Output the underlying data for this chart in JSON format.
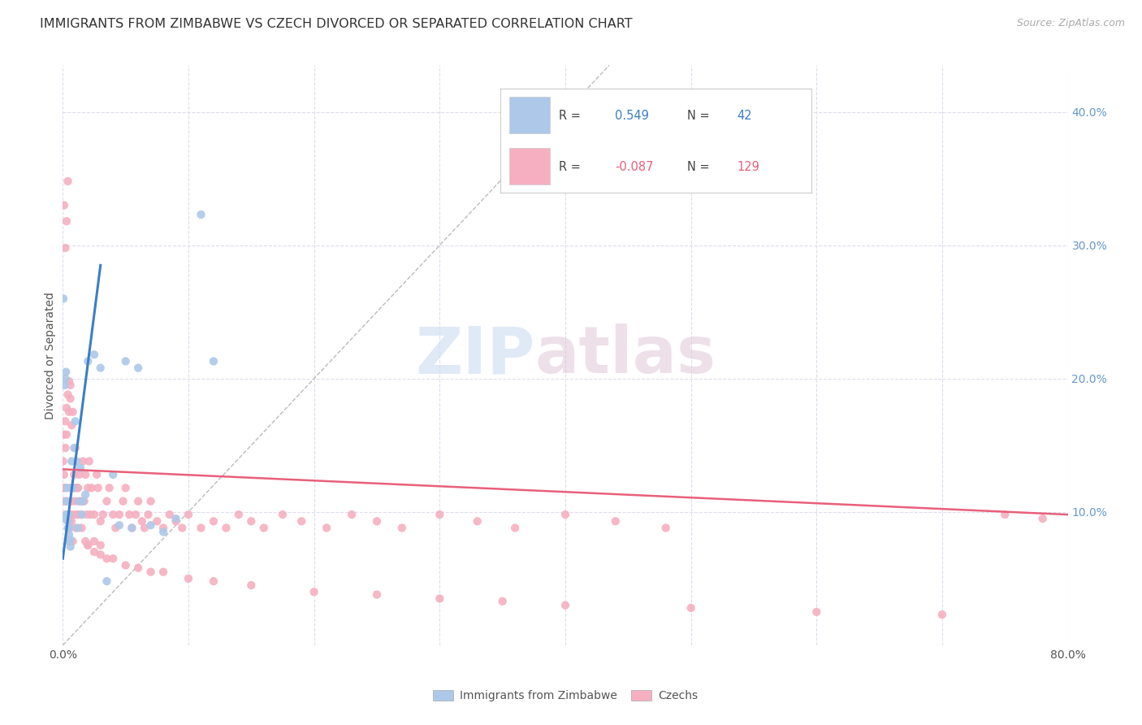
{
  "title": "IMMIGRANTS FROM ZIMBABWE VS CZECH DIVORCED OR SEPARATED CORRELATION CHART",
  "source": "Source: ZipAtlas.com",
  "ylabel": "Divorced or Separated",
  "legend_label_blue": "Immigrants from Zimbabwe",
  "legend_label_pink": "Czechs",
  "watermark_zip": "ZIP",
  "watermark_atlas": "atlas",
  "blue_color": "#adc8e8",
  "pink_color": "#f5afc0",
  "blue_line_color": "#3a7ec8",
  "pink_line_color": "#e8607a",
  "blue_scatter_x": [
    0.0005,
    0.001,
    0.0015,
    0.002,
    0.0025,
    0.003,
    0.003,
    0.0035,
    0.004,
    0.004,
    0.0045,
    0.005,
    0.005,
    0.005,
    0.006,
    0.006,
    0.007,
    0.007,
    0.008,
    0.009,
    0.01,
    0.011,
    0.012,
    0.013,
    0.014,
    0.015,
    0.016,
    0.018,
    0.02,
    0.025,
    0.03,
    0.035,
    0.04,
    0.045,
    0.05,
    0.055,
    0.06,
    0.07,
    0.08,
    0.09,
    0.11,
    0.12
  ],
  "blue_scatter_y": [
    0.26,
    0.095,
    0.195,
    0.2,
    0.205,
    0.098,
    0.108,
    0.118,
    0.088,
    0.093,
    0.098,
    0.078,
    0.083,
    0.088,
    0.074,
    0.079,
    0.118,
    0.138,
    0.118,
    0.148,
    0.168,
    0.138,
    0.088,
    0.108,
    0.133,
    0.098,
    0.108,
    0.113,
    0.213,
    0.218,
    0.208,
    0.048,
    0.128,
    0.09,
    0.213,
    0.088,
    0.208,
    0.09,
    0.085,
    0.095,
    0.323,
    0.213
  ],
  "pink_scatter_x": [
    0.0002,
    0.0005,
    0.001,
    0.001,
    0.0015,
    0.002,
    0.002,
    0.0025,
    0.003,
    0.003,
    0.003,
    0.004,
    0.004,
    0.005,
    0.005,
    0.006,
    0.006,
    0.007,
    0.007,
    0.008,
    0.009,
    0.01,
    0.01,
    0.011,
    0.012,
    0.013,
    0.014,
    0.015,
    0.016,
    0.017,
    0.018,
    0.019,
    0.02,
    0.021,
    0.022,
    0.023,
    0.025,
    0.027,
    0.028,
    0.03,
    0.032,
    0.035,
    0.037,
    0.04,
    0.042,
    0.045,
    0.048,
    0.05,
    0.053,
    0.055,
    0.058,
    0.06,
    0.063,
    0.065,
    0.068,
    0.07,
    0.075,
    0.08,
    0.085,
    0.09,
    0.095,
    0.1,
    0.11,
    0.12,
    0.13,
    0.14,
    0.15,
    0.16,
    0.175,
    0.19,
    0.21,
    0.23,
    0.25,
    0.27,
    0.3,
    0.33,
    0.36,
    0.4,
    0.44,
    0.48,
    0.001,
    0.002,
    0.003,
    0.004,
    0.005,
    0.006,
    0.008,
    0.01,
    0.012,
    0.015,
    0.02,
    0.025,
    0.03,
    0.001,
    0.002,
    0.003,
    0.004,
    0.005,
    0.006,
    0.007,
    0.008,
    0.009,
    0.01,
    0.012,
    0.015,
    0.018,
    0.02,
    0.025,
    0.03,
    0.035,
    0.04,
    0.05,
    0.06,
    0.07,
    0.08,
    0.1,
    0.12,
    0.15,
    0.2,
    0.25,
    0.3,
    0.35,
    0.4,
    0.5,
    0.6,
    0.7,
    0.75,
    0.78
  ],
  "pink_scatter_y": [
    0.138,
    0.118,
    0.118,
    0.128,
    0.108,
    0.118,
    0.148,
    0.098,
    0.098,
    0.108,
    0.158,
    0.093,
    0.098,
    0.088,
    0.093,
    0.098,
    0.118,
    0.093,
    0.108,
    0.098,
    0.128,
    0.118,
    0.148,
    0.098,
    0.118,
    0.128,
    0.108,
    0.098,
    0.138,
    0.108,
    0.128,
    0.098,
    0.118,
    0.138,
    0.098,
    0.118,
    0.098,
    0.128,
    0.118,
    0.093,
    0.098,
    0.108,
    0.118,
    0.098,
    0.088,
    0.098,
    0.108,
    0.118,
    0.098,
    0.088,
    0.098,
    0.108,
    0.093,
    0.088,
    0.098,
    0.108,
    0.093,
    0.088,
    0.098,
    0.093,
    0.088,
    0.098,
    0.088,
    0.093,
    0.088,
    0.098,
    0.093,
    0.088,
    0.098,
    0.093,
    0.088,
    0.098,
    0.093,
    0.088,
    0.098,
    0.093,
    0.088,
    0.098,
    0.093,
    0.088,
    0.33,
    0.298,
    0.318,
    0.348,
    0.198,
    0.195,
    0.078,
    0.088,
    0.118,
    0.108,
    0.075,
    0.078,
    0.075,
    0.158,
    0.168,
    0.178,
    0.188,
    0.175,
    0.185,
    0.165,
    0.175,
    0.118,
    0.108,
    0.098,
    0.088,
    0.078,
    0.075,
    0.07,
    0.068,
    0.065,
    0.065,
    0.06,
    0.058,
    0.055,
    0.055,
    0.05,
    0.048,
    0.045,
    0.04,
    0.038,
    0.035,
    0.033,
    0.03,
    0.028,
    0.025,
    0.023,
    0.098,
    0.095
  ],
  "xlim": [
    0.0,
    0.8
  ],
  "ylim": [
    0.0,
    0.435
  ],
  "xtick_positions": [
    0.0,
    0.1,
    0.2,
    0.3,
    0.4,
    0.5,
    0.6,
    0.7,
    0.8
  ],
  "ytick_positions": [
    0.0,
    0.1,
    0.2,
    0.3,
    0.4
  ],
  "ytick_labels": [
    "",
    "10.0%",
    "20.0%",
    "30.0%",
    "40.0%"
  ],
  "blue_line_x": [
    0.0,
    0.03
  ],
  "blue_line_y": [
    0.065,
    0.285
  ],
  "pink_line_x": [
    0.0,
    0.8
  ],
  "pink_line_y": [
    0.132,
    0.098
  ],
  "dashed_line_x": [
    0.0,
    0.435
  ],
  "dashed_line_y": [
    0.0,
    0.435
  ]
}
